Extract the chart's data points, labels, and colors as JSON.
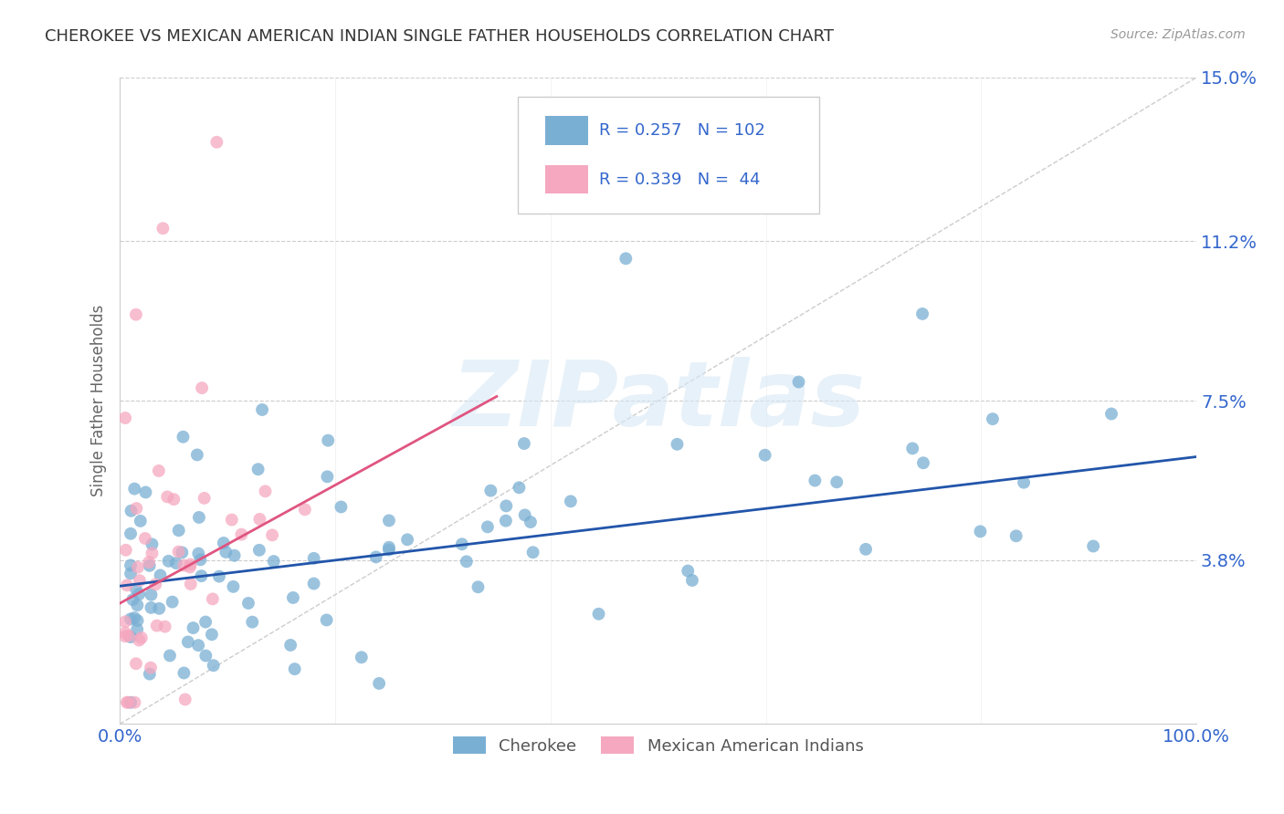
{
  "title": "CHEROKEE VS MEXICAN AMERICAN INDIAN SINGLE FATHER HOUSEHOLDS CORRELATION CHART",
  "source": "Source: ZipAtlas.com",
  "ylabel": "Single Father Households",
  "xlim": [
    0,
    1.0
  ],
  "ylim": [
    0,
    0.15
  ],
  "yticks": [
    0.038,
    0.075,
    0.112,
    0.15
  ],
  "ytick_labels": [
    "3.8%",
    "7.5%",
    "11.2%",
    "15.0%"
  ],
  "xtick_labels": [
    "0.0%",
    "100.0%"
  ],
  "xticks": [
    0.0,
    1.0
  ],
  "cherokee_R": 0.257,
  "cherokee_N": 102,
  "mex_R": 0.339,
  "mex_N": 44,
  "cherokee_color": "#7aafd4",
  "mex_color": "#f5a8c0",
  "cherokee_line_color": "#2255aa",
  "mex_line_color": "#e05580",
  "ref_line_color": "#cccccc",
  "legend_label_cherokee": "Cherokee",
  "legend_label_mex": "Mexican American Indians",
  "watermark_text": "ZIPatlas",
  "background_color": "#ffffff",
  "grid_color": "#cccccc",
  "title_color": "#333333",
  "axis_label_color": "#3366cc",
  "cherokee_trend_x0": 0.0,
  "cherokee_trend_y0": 0.032,
  "cherokee_trend_x1": 1.0,
  "cherokee_trend_y1": 0.062,
  "mex_trend_x0": 0.0,
  "mex_trend_y0": 0.028,
  "mex_trend_x1": 0.35,
  "mex_trend_y1": 0.076
}
